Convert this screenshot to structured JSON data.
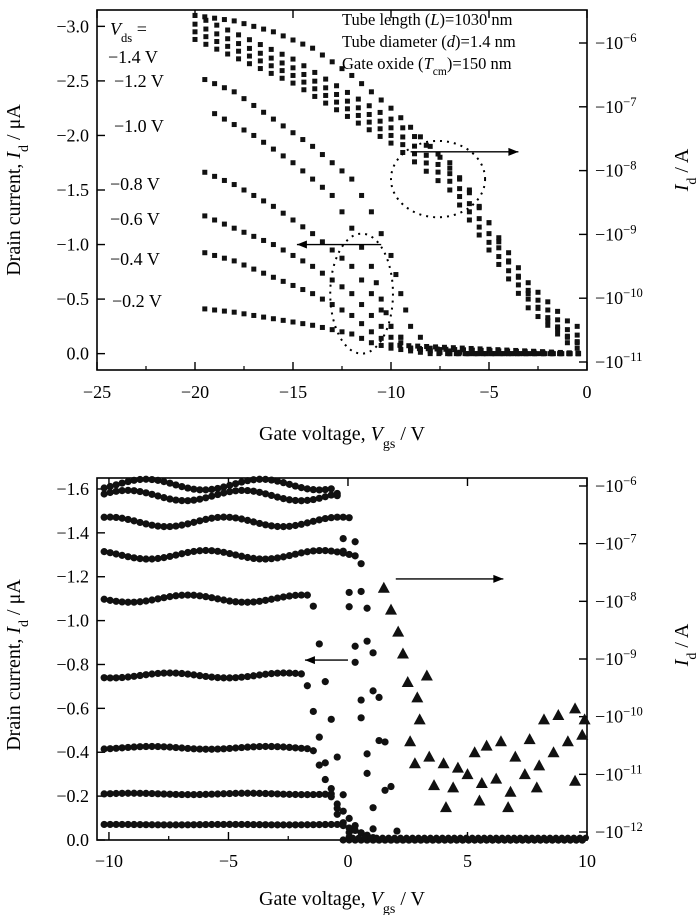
{
  "chart_data": [
    {
      "type": "scatter",
      "xlabel": {
        "base": "Gate voltage, ",
        "sym": "V",
        "sub": "gs",
        "tail": " / V"
      },
      "ylabel_left": {
        "base": "Drain current, ",
        "sym": "I",
        "sub": "d",
        "tail": " / μA"
      },
      "ylabel_right": {
        "sym": "I",
        "sub": "d",
        "tail": " / A"
      },
      "xlim": [
        -25,
        0
      ],
      "ylim": [
        0.15,
        -3.15
      ],
      "x_ticks": [
        "−25",
        "−20",
        "−15",
        "−10",
        "−5",
        "0"
      ],
      "y_ticks": [
        "−3.0",
        "−2.5",
        "−2.0",
        "−1.5",
        "−1.0",
        "−0.5",
        "0.0"
      ],
      "y_right_ticks": [
        {
          "base": "−10",
          "exp": "−6"
        },
        {
          "base": "−10",
          "exp": "−7"
        },
        {
          "base": "−10",
          "exp": "−8"
        },
        {
          "base": "−10",
          "exp": "−9"
        },
        {
          "base": "−10",
          "exp": "−10"
        },
        {
          "base": "−10",
          "exp": "−11"
        }
      ],
      "vds_header": {
        "sym": "V",
        "sub": "ds",
        "tail": " ="
      },
      "series_labels": [
        "−1.4 V",
        "−1.2 V",
        "−1.0 V",
        "−0.8 V",
        "−0.6 V",
        "−0.4 V",
        "−0.2 V"
      ],
      "annotations": [
        {
          "pre": "Tube length (",
          "sym": "L",
          "post": ")=1030 nm"
        },
        {
          "pre": "Tube diameter (",
          "sym": "d",
          "post": ")=1.4 nm"
        },
        {
          "pre": "Gate oxide (",
          "sym": "T",
          "sub": "cm",
          "post": ")=150 nm"
        }
      ],
      "linear_series": [
        {
          "name": "−1.4 V",
          "values": [
            [
              -20,
              -3.1
            ],
            [
              -18,
              -3.05
            ],
            [
              -16,
              -2.95
            ],
            [
              -14,
              -2.8
            ],
            [
              -12,
              -2.55
            ],
            [
              -10,
              -2.25
            ],
            [
              -8,
              -1.9
            ],
            [
              -6,
              -1.5
            ],
            [
              -5,
              -1.2
            ],
            [
              -4,
              -0.85
            ],
            [
              -3,
              -0.55
            ],
            [
              -2,
              -0.3
            ],
            [
              -1,
              -0.15
            ],
            [
              0,
              -0.05
            ]
          ]
        },
        {
          "name": "−1.2 V",
          "values": [
            [
              -20,
              -2.55
            ],
            [
              -18,
              -2.4
            ],
            [
              -16,
              -2.15
            ],
            [
              -14,
              -1.9
            ],
            [
              -12,
              -1.6
            ],
            [
              -11,
              -1.3
            ],
            [
              -10,
              -0.9
            ],
            [
              -9.5,
              -0.55
            ],
            [
              -9,
              -0.25
            ],
            [
              -8,
              -0.05
            ],
            [
              -6,
              0.0
            ],
            [
              -3,
              0.0
            ],
            [
              0,
              0.0
            ]
          ]
        },
        {
          "name": "−1.0 V",
          "values": [
            [
              -19,
              -2.2
            ],
            [
              -17,
              -2.0
            ],
            [
              -15,
              -1.75
            ],
            [
              -13,
              -1.45
            ],
            [
              -12,
              -1.15
            ],
            [
              -11,
              -0.8
            ],
            [
              -10.5,
              -0.5
            ],
            [
              -10,
              -0.25
            ],
            [
              -9,
              -0.05
            ],
            [
              -7,
              0.0
            ],
            [
              -4,
              0.0
            ],
            [
              0,
              0.0
            ]
          ]
        },
        {
          "name": "−0.8 V",
          "values": [
            [
              -20,
              -1.7
            ],
            [
              -18,
              -1.55
            ],
            [
              -16,
              -1.35
            ],
            [
              -14,
              -1.1
            ],
            [
              -12,
              -0.8
            ],
            [
              -11,
              -0.55
            ],
            [
              -10,
              -0.25
            ],
            [
              -9,
              -0.05
            ],
            [
              -7,
              0.0
            ],
            [
              0,
              0.0
            ]
          ]
        },
        {
          "name": "−0.6 V",
          "values": [
            [
              -20,
              -1.3
            ],
            [
              -18,
              -1.15
            ],
            [
              -16,
              -1.0
            ],
            [
              -14,
              -0.8
            ],
            [
              -12,
              -0.55
            ],
            [
              -11,
              -0.35
            ],
            [
              -10,
              -0.15
            ],
            [
              -9,
              -0.05
            ],
            [
              0,
              0.0
            ]
          ]
        },
        {
          "name": "−0.4 V",
          "values": [
            [
              -20,
              -0.95
            ],
            [
              -18,
              -0.85
            ],
            [
              -16,
              -0.7
            ],
            [
              -14,
              -0.55
            ],
            [
              -12,
              -0.35
            ],
            [
              -11,
              -0.2
            ],
            [
              -10,
              -0.08
            ],
            [
              0,
              0.0
            ]
          ]
        },
        {
          "name": "−0.2 V",
          "values": [
            [
              -20,
              -0.42
            ],
            [
              -18,
              -0.38
            ],
            [
              -16,
              -0.32
            ],
            [
              -14,
              -0.26
            ],
            [
              -12,
              -0.18
            ],
            [
              -11,
              -0.1
            ],
            [
              -10,
              -0.05
            ],
            [
              -8,
              0.0
            ],
            [
              0,
              0.0
            ]
          ]
        }
      ],
      "log_series": [
        {
          "name": "−1.4 V",
          "values": [
            [
              -20,
              -3.1
            ],
            [
              -15,
              -2.7
            ],
            [
              -10,
              -2.15
            ],
            [
              -7,
              -1.75
            ],
            [
              -5,
              -1.2
            ],
            [
              -3,
              -0.65
            ],
            [
              -1,
              -0.3
            ],
            [
              0,
              -0.2
            ]
          ]
        },
        {
          "name": "−1.2 V",
          "values": [
            [
              -20,
              -3.02
            ],
            [
              -15,
              -2.62
            ],
            [
              -10,
              -2.07
            ],
            [
              -7,
              -1.65
            ],
            [
              -5,
              -1.1
            ],
            [
              -3,
              -0.58
            ],
            [
              -1,
              -0.22
            ],
            [
              0,
              -0.12
            ]
          ]
        },
        {
          "name": "−1.0 V",
          "values": [
            [
              -20,
              -2.95
            ],
            [
              -15,
              -2.55
            ],
            [
              -10,
              -2.0
            ],
            [
              -7,
              -1.58
            ],
            [
              -5,
              -1.02
            ],
            [
              -3,
              -0.5
            ],
            [
              -1,
              -0.16
            ],
            [
              0,
              -0.06
            ]
          ]
        },
        {
          "name": "−0.8 V",
          "values": [
            [
              -20,
              -2.88
            ],
            [
              -15,
              -2.48
            ],
            [
              -10,
              -1.93
            ],
            [
              -7,
              -1.5
            ],
            [
              -5,
              -0.95
            ],
            [
              -3,
              -0.42
            ],
            [
              -1,
              -0.1
            ],
            [
              0,
              0.0
            ]
          ]
        }
      ],
      "arrows": [
        {
          "from": [
            -9.0,
            -1.85
          ],
          "to": [
            -3.5,
            -1.85
          ],
          "points_to": "right-axis"
        },
        {
          "from": [
            -10.5,
            -1.0
          ],
          "to": [
            -14.8,
            -1.0
          ],
          "points_to": "left-axis"
        }
      ],
      "ellipses": [
        {
          "cx": -7.6,
          "cy": -1.6,
          "rx": 2.4,
          "ry": 0.35
        },
        {
          "cx": -11.5,
          "cy": -0.55,
          "rx": 1.6,
          "ry": 0.55
        }
      ]
    },
    {
      "type": "scatter",
      "xlabel": {
        "base": "Gate voltage, ",
        "sym": "V",
        "sub": "gs",
        "tail": " / V"
      },
      "ylabel_left": {
        "base": "Drain current, ",
        "sym": "I",
        "sub": "d",
        "tail": " / μA"
      },
      "ylabel_right": {
        "sym": "I",
        "sub": "d",
        "tail": " / A"
      },
      "xlim": [
        -10.5,
        10
      ],
      "ylim": [
        0.0,
        -1.65
      ],
      "x_ticks": [
        "−10",
        "−5",
        "0",
        "5",
        "10"
      ],
      "y_ticks": [
        "−1.6",
        "−1.4",
        "−1.2",
        "−1.0",
        "−0.8",
        "−0.6",
        "−0.4",
        "−0.2",
        "0.0"
      ],
      "y_right_ticks": [
        {
          "base": "−10",
          "exp": "−6"
        },
        {
          "base": "−10",
          "exp": "−7"
        },
        {
          "base": "−10",
          "exp": "−8"
        },
        {
          "base": "−10",
          "exp": "−9"
        },
        {
          "base": "−10",
          "exp": "−10"
        },
        {
          "base": "−10",
          "exp": "−11"
        },
        {
          "base": "−10",
          "exp": "−12"
        }
      ],
      "linear_series": [
        {
          "level": -1.62,
          "knee": -0.5
        },
        {
          "level": -1.57,
          "knee": -0.4
        },
        {
          "level": -1.45,
          "knee": 0.2
        },
        {
          "level": -1.3,
          "knee": 0.5
        },
        {
          "level": -1.1,
          "knee": -1.5
        },
        {
          "level": -0.75,
          "knee": -1.8
        },
        {
          "level": -0.42,
          "knee": -1.5
        },
        {
          "level": -0.21,
          "knee": -0.8
        },
        {
          "level": -0.07,
          "knee": -0.3
        }
      ],
      "log_points": [
        [
          1.5,
          -1.15
        ],
        [
          1.8,
          -1.05
        ],
        [
          2.1,
          -0.95
        ],
        [
          2.3,
          -0.85
        ],
        [
          2.5,
          -0.72
        ],
        [
          2.9,
          -0.65
        ],
        [
          3.3,
          -0.75
        ],
        [
          3.0,
          -0.55
        ],
        [
          2.6,
          -0.45
        ],
        [
          2.8,
          -0.35
        ],
        [
          3.4,
          -0.38
        ],
        [
          4.0,
          -0.35
        ],
        [
          4.6,
          -0.33
        ],
        [
          5.3,
          -0.4
        ],
        [
          5.8,
          -0.43
        ],
        [
          6.4,
          -0.45
        ],
        [
          7.0,
          -0.38
        ],
        [
          7.6,
          -0.46
        ],
        [
          8.2,
          -0.55
        ],
        [
          8.8,
          -0.57
        ],
        [
          9.5,
          -0.6
        ],
        [
          9.9,
          -0.55
        ],
        [
          3.6,
          -0.25
        ],
        [
          4.4,
          -0.24
        ],
        [
          5.0,
          -0.3
        ],
        [
          5.6,
          -0.26
        ],
        [
          6.2,
          -0.28
        ],
        [
          6.8,
          -0.22
        ],
        [
          7.4,
          -0.3
        ],
        [
          8.0,
          -0.34
        ],
        [
          8.6,
          -0.4
        ],
        [
          9.2,
          -0.45
        ],
        [
          9.8,
          -0.48
        ],
        [
          4.1,
          -0.15
        ],
        [
          5.5,
          -0.18
        ],
        [
          6.7,
          -0.15
        ],
        [
          7.9,
          -0.24
        ],
        [
          9.5,
          -0.27
        ]
      ],
      "arrows": [
        {
          "from": [
            2.0,
            -1.19
          ],
          "to": [
            6.5,
            -1.19
          ],
          "points_to": "right-axis"
        },
        {
          "from": [
            0.0,
            -0.82
          ],
          "to": [
            -1.8,
            -0.82
          ],
          "points_to": "left-axis"
        }
      ]
    }
  ]
}
